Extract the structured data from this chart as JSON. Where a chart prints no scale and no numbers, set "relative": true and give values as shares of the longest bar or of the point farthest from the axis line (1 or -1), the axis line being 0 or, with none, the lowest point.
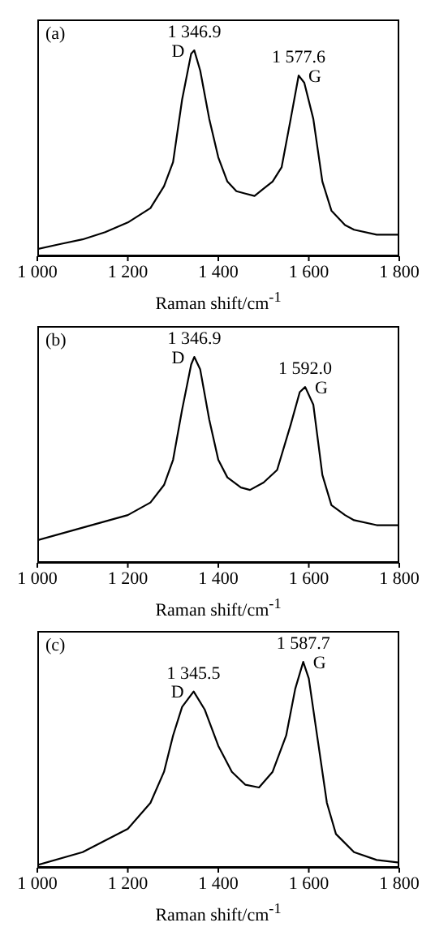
{
  "chart_data": [
    {
      "type": "line",
      "title": "(a)",
      "xlabel": "Raman shift/cm$^{-1}$",
      "relative": true,
      "color": "#000000",
      "marker": "none",
      "xlim": [
        1000,
        1800
      ],
      "xticks": [
        {
          "value": 1000,
          "label": "1 000"
        },
        {
          "value": 1200,
          "label": "1 200"
        },
        {
          "value": 1400,
          "label": "1 400"
        },
        {
          "value": 1600,
          "label": "1 600"
        },
        {
          "value": 1800,
          "label": "1 800"
        }
      ],
      "x": [
        1000,
        1050,
        1100,
        1150,
        1200,
        1250,
        1280,
        1300,
        1320,
        1340,
        1346.9,
        1360,
        1380,
        1400,
        1420,
        1440,
        1460,
        1480,
        1500,
        1520,
        1540,
        1560,
        1577.6,
        1590,
        1610,
        1630,
        1650,
        1680,
        1700,
        1750,
        1800
      ],
      "values": [
        0.035,
        0.059,
        0.082,
        0.117,
        0.164,
        0.234,
        0.34,
        0.457,
        0.761,
        0.984,
        1,
        0.902,
        0.667,
        0.48,
        0.363,
        0.316,
        0.304,
        0.293,
        0.328,
        0.363,
        0.433,
        0.667,
        0.878,
        0.843,
        0.667,
        0.363,
        0.222,
        0.152,
        0.129,
        0.105,
        0.105
      ],
      "annotations": [
        {
          "text": "1 346.9",
          "x": 1346.9,
          "y": 1
        },
        {
          "text": "D",
          "x": 1346.9,
          "y": 1
        },
        {
          "text": "1 577.6",
          "x": 1577.6,
          "y": 0.878
        },
        {
          "text": "G",
          "x": 1577.6,
          "y": 0.878
        }
      ]
    },
    {
      "type": "line",
      "title": "(b)",
      "xlabel": "Raman shift/cm$^{-1}$",
      "relative": true,
      "color": "#000000",
      "marker": "none",
      "xlim": [
        1000,
        1800
      ],
      "xticks": [
        {
          "value": 1000,
          "label": "1 000"
        },
        {
          "value": 1200,
          "label": "1 200"
        },
        {
          "value": 1400,
          "label": "1 400"
        },
        {
          "value": 1600,
          "label": "1 600"
        },
        {
          "value": 1800,
          "label": "1 800"
        }
      ],
      "x": [
        1000,
        1100,
        1200,
        1250,
        1280,
        1300,
        1320,
        1340,
        1346.9,
        1360,
        1380,
        1400,
        1420,
        1450,
        1470,
        1500,
        1530,
        1560,
        1580,
        1592,
        1610,
        1630,
        1650,
        1680,
        1700,
        1750,
        1800
      ],
      "values": [
        0.11,
        0.171,
        0.232,
        0.293,
        0.378,
        0.5,
        0.744,
        0.963,
        1,
        0.939,
        0.695,
        0.5,
        0.415,
        0.366,
        0.354,
        0.39,
        0.451,
        0.671,
        0.829,
        0.854,
        0.768,
        0.427,
        0.28,
        0.232,
        0.207,
        0.183,
        0.183
      ],
      "annotations": [
        {
          "text": "1 346.9",
          "x": 1346.9,
          "y": 1
        },
        {
          "text": "D",
          "x": 1346.9,
          "y": 1
        },
        {
          "text": "1 592.0",
          "x": 1592,
          "y": 0.854
        },
        {
          "text": "G",
          "x": 1592,
          "y": 0.854
        }
      ]
    },
    {
      "type": "line",
      "title": "(c)",
      "xlabel": "Raman shift/cm$^{-1}$",
      "relative": true,
      "color": "#000000",
      "marker": "none",
      "xlim": [
        1000,
        1800
      ],
      "xticks": [
        {
          "value": 1000,
          "label": "1 000"
        },
        {
          "value": 1200,
          "label": "1 200"
        },
        {
          "value": 1400,
          "label": "1 400"
        },
        {
          "value": 1600,
          "label": "1 600"
        },
        {
          "value": 1800,
          "label": "1 800"
        }
      ],
      "x": [
        1000,
        1100,
        1200,
        1250,
        1280,
        1300,
        1320,
        1345.5,
        1370,
        1400,
        1430,
        1460,
        1490,
        1520,
        1550,
        1570,
        1587.7,
        1600,
        1620,
        1640,
        1660,
        1700,
        1750,
        1800
      ],
      "values": [
        0.013,
        0.076,
        0.189,
        0.315,
        0.466,
        0.642,
        0.781,
        0.856,
        0.768,
        0.592,
        0.466,
        0.403,
        0.39,
        0.466,
        0.642,
        0.869,
        1,
        0.919,
        0.617,
        0.315,
        0.164,
        0.076,
        0.038,
        0.025
      ],
      "annotations": [
        {
          "text": "1 345.5",
          "x": 1345.5,
          "y": 0.856
        },
        {
          "text": "D",
          "x": 1345.5,
          "y": 0.856
        },
        {
          "text": "1 587.7",
          "x": 1587.7,
          "y": 1
        },
        {
          "text": "G",
          "x": 1587.7,
          "y": 1
        }
      ]
    }
  ]
}
